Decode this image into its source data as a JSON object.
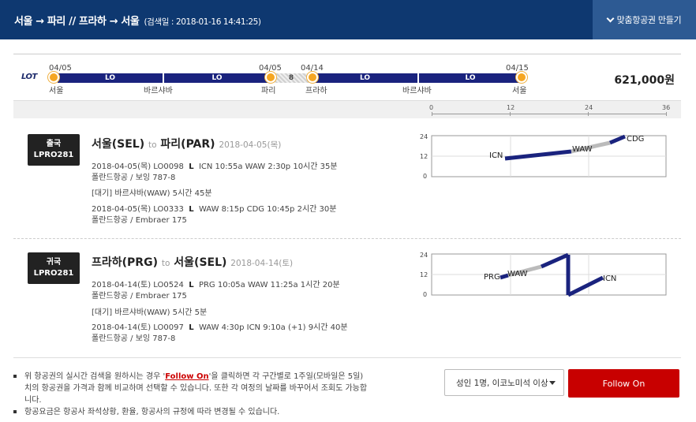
{
  "header": {
    "route": "서울 → 파리 // 프라하 → 서울",
    "search_date": "(검색일 : 2018-01-16 14:41:25)",
    "make_button": "맞춤항공권 만들기"
  },
  "summary": {
    "airline_logo": "LOT",
    "price": "621,000원",
    "dates": [
      "04/05",
      "04/05",
      "04/14",
      "04/15"
    ],
    "cities": [
      "서울",
      "바르샤바",
      "파리",
      "프라하",
      "바르샤바",
      "서울"
    ],
    "segments": [
      "LO",
      "LO",
      "8",
      "LO",
      "LO"
    ]
  },
  "axis": {
    "ticks": [
      "0",
      "12",
      "24",
      "36"
    ]
  },
  "outbound": {
    "badge_top": "출국",
    "badge_code": "LPRO281",
    "from": "서울(SEL)",
    "to_word": "to",
    "to": "파리(PAR)",
    "date": "2018-04-05(목)",
    "leg1": "2018-04-05(목)  LO0098",
    "leg1_class": "L",
    "leg1_detail": "ICN 10:55a WAW 2:30p  10시간 35분",
    "leg1_aircraft": "폴란드항공 / 보잉 787-8",
    "wait": "[대기] 바르샤바(WAW)  5시간 45분",
    "leg2": "2018-04-05(목)  LO0333",
    "leg2_class": "L",
    "leg2_detail": "WAW 8:15p CDG 10:45p  2시간 30분",
    "leg2_aircraft": "폴란드항공 / Embraer 175"
  },
  "inbound": {
    "badge_top": "귀국",
    "badge_code": "LPRO281",
    "from": "프라하(PRG)",
    "to_word": "to",
    "to": "서울(SEL)",
    "date": "2018-04-14(토)",
    "leg1": "2018-04-14(토)  LO0524",
    "leg1_class": "L",
    "leg1_detail": "PRG 10:05a WAW 11:25a  1시간 20분",
    "leg1_aircraft": "폴란드항공 / Embraer 175",
    "wait": "[대기] 바르샤바(WAW)  5시간 5분",
    "leg2": "2018-04-14(토)  LO0097",
    "leg2_class": "L",
    "leg2_detail": "WAW 4:30p ICN 9:10a (+1)  9시간 40분",
    "leg2_aircraft": "폴란드항공 / 보잉 787-8"
  },
  "chart_labels": {
    "out": {
      "y_ticks": [
        "24",
        "12",
        "0"
      ],
      "airports": [
        "ICN",
        "WAW",
        "CDG"
      ]
    },
    "in": {
      "y_ticks": [
        "24",
        "12",
        "0"
      ],
      "airports": [
        "PRG",
        "WAW",
        "ICN"
      ]
    }
  },
  "notes": {
    "note1_a": "위 항공권의 실시간 검색을 원하시는 경우 '",
    "note1_link": "Follow On",
    "note1_b": "'을 클릭하면 각 구간별로 1주일(모바일은 5일)치의 항공권을 가격과 함께 비교하며 선택할 수 있습니다. 또한 각 여정의 날짜를 바꾸어서 조회도 가능합니다.",
    "note2": "항공요금은 항공사 좌석상황, 환율, 항공사의 규정에 따라 변경될 수 있습니다."
  },
  "controls": {
    "passenger_select": "성인 1명, 이코노미석 이상",
    "follow_button": "Follow On"
  },
  "colors": {
    "header": "#0e3870",
    "flight": "#1a237e",
    "wait": "#bbbbbb",
    "dot": "#f5a623",
    "button": "#c80000"
  }
}
